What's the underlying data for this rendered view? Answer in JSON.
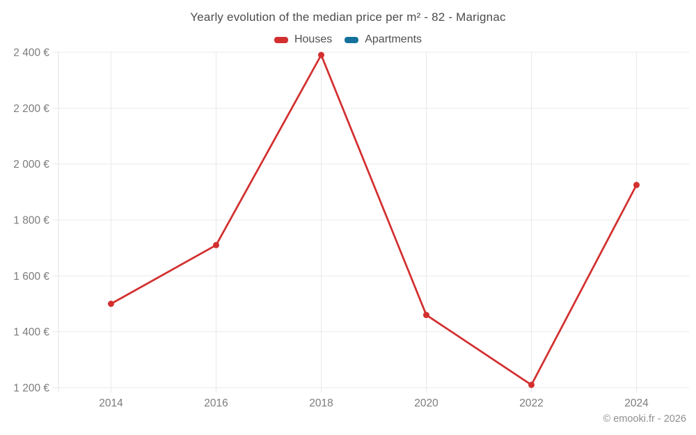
{
  "header": {
    "title": "Yearly evolution of the median price per m² - 82 - Marignac"
  },
  "legend": {
    "items": [
      {
        "label": "Houses",
        "color": "#d32f2f"
      },
      {
        "label": "Apartments",
        "color": "#15719c"
      }
    ]
  },
  "footer": {
    "credit": "© emooki.fr - 2026"
  },
  "chart_data": {
    "type": "line",
    "title": "Yearly evolution of the median price per m² - 82 - Marignac",
    "categories": [
      "2014",
      "2016",
      "2018",
      "2020",
      "2022",
      "2024"
    ],
    "series": [
      {
        "name": "Houses",
        "color": "#d32f2f",
        "values": [
          1500,
          1710,
          2390,
          1460,
          1210,
          1925
        ]
      },
      {
        "name": "Apartments",
        "color": "#15719c",
        "values": []
      }
    ],
    "xlabel": "",
    "ylabel": "",
    "ylim": [
      1200,
      2400
    ],
    "ytick_step": 200,
    "ytick_labels": [
      "1 200 €",
      "1 400 €",
      "1 600 €",
      "1 800 €",
      "2 000 €",
      "2 200 €",
      "2 400 €"
    ],
    "grid": true,
    "legend_position": "top",
    "annotations": [
      "© emooki.fr - 2026"
    ]
  },
  "colors": {
    "background": "#ffffff",
    "grid": "#e9e9e9",
    "axis": "#e0e0e0",
    "title_text": "#4c4c4c",
    "tick_text": "#7b7b7b",
    "legend_text": "#4f4f4f",
    "footer_text": "#8f8f8f"
  }
}
